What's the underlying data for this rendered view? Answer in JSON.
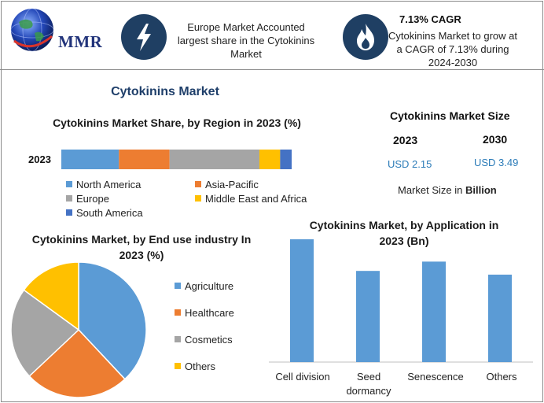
{
  "header": {
    "logo_text": "MMR",
    "bolt_icon": "lightning-bolt-icon",
    "flame_icon": "flame-icon",
    "europe_text": "Europe Market Accounted largest share in the Cytokinins Market",
    "cagr_title": "7.13% CAGR",
    "cagr_text": "Cytokinins Market to grow at a CAGR of 7.13% during 2024-2030"
  },
  "main_title": "Cytokinins Market",
  "market_size": {
    "title": "Cytokinins Market Size",
    "year1": "2023",
    "year2": "2030",
    "value1": "USD 2.15",
    "value2": "USD 3.49",
    "note_prefix": "Market Size in ",
    "note_unit": "Billion"
  },
  "colors": {
    "blue": "#5b9bd5",
    "orange": "#ed7d31",
    "gray": "#a5a5a5",
    "yellow": "#ffc000",
    "darkblue": "#4472c4"
  },
  "chart_data": [
    {
      "type": "bar",
      "orientation": "horizontal-stacked",
      "title": "Cytokinins Market Share, by Region in 2023 (%)",
      "categories": [
        "2023"
      ],
      "series": [
        {
          "name": "North America",
          "values": [
            25
          ],
          "color": "#5b9bd5"
        },
        {
          "name": "Asia-Pacific",
          "values": [
            22
          ],
          "color": "#ed7d31"
        },
        {
          "name": "Europe",
          "values": [
            39
          ],
          "color": "#a5a5a5"
        },
        {
          "name": "Middle East and Africa",
          "values": [
            9
          ],
          "color": "#ffc000"
        },
        {
          "name": "South America",
          "values": [
            5
          ],
          "color": "#4472c4"
        }
      ],
      "legend_position": "bottom"
    },
    {
      "type": "pie",
      "title": "Cytokinins Market, by End use industry In 2023 (%)",
      "labels": [
        "Agriculture",
        "Healthcare",
        "Cosmetics",
        "Others"
      ],
      "values": [
        38,
        25,
        22,
        15
      ],
      "colors": [
        "#5b9bd5",
        "#ed7d31",
        "#a5a5a5",
        "#ffc000"
      ],
      "legend_position": "right"
    },
    {
      "type": "bar",
      "title": "Cytokinins Market, by Application in 2023 (Bn)",
      "categories": [
        "Cell division",
        "Seed dormancy",
        "Senescence",
        "Others"
      ],
      "values": [
        0.66,
        0.49,
        0.54,
        0.47
      ],
      "color": "#5b9bd5",
      "ylim": [
        0,
        0.66
      ]
    }
  ]
}
